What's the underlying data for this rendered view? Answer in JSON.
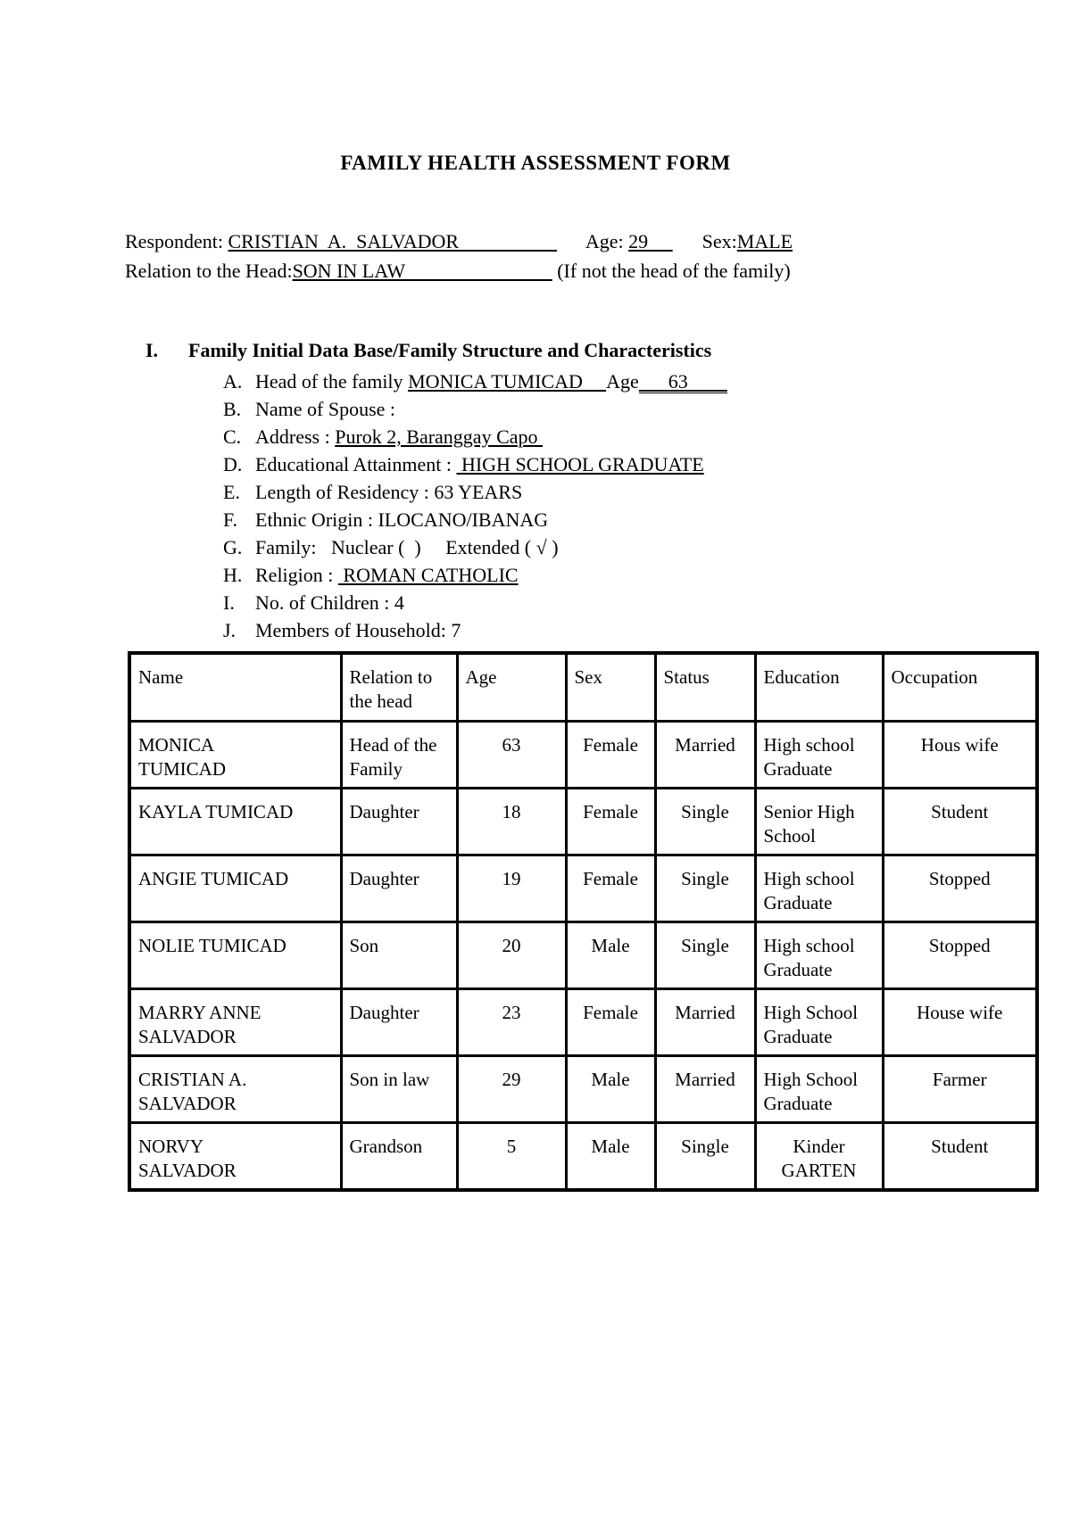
{
  "title": "FAMILY HEALTH ASSESSMENT FORM",
  "respondent": {
    "label": "Respondent: ",
    "name": "CRISTIAN  A.  SALVADOR                    ",
    "gap1": "      ",
    "age_label": "Age: ",
    "age": "29     ",
    "gap2": "      ",
    "sex_label": "Sex:",
    "sex": "MALE"
  },
  "relation": {
    "label": "Relation to the Head:",
    "value": "SON IN LAW                              ",
    "note": " (If not the head of the family)"
  },
  "section1": {
    "number": "I.",
    "heading": "Family Initial Data Base/Family Structure and Characteristics",
    "items": [
      {
        "letter": "A.",
        "pre": "Head of the family ",
        "u1": "MONICA TUMICAD     ",
        "mid": "Age",
        "u2": "      63        "
      },
      {
        "letter": "B.",
        "pre": "Name of Spouse : "
      },
      {
        "letter": "C.",
        "pre": "Address : ",
        "u1": "Purok 2, Baranggay Capo "
      },
      {
        "letter": "D.",
        "pre": "Educational Attainment : ",
        "u1": " HIGH SCHOOL GRADUATE"
      },
      {
        "letter": "E.",
        "pre": "Length of Residency : 63 YEARS"
      },
      {
        "letter": "F.",
        "pre": "Ethnic Origin : ILOCANO/IBANAG"
      },
      {
        "letter": "G.",
        "pre": "Family:   Nuclear (  )     Extended ( √ )"
      },
      {
        "letter": "H.",
        "pre": "Religion : ",
        "u1": " ROMAN CATHOLIC"
      },
      {
        "letter": "I.",
        "pre": "No. of Children : 4"
      },
      {
        "letter": "J.",
        "pre": "Members of Household: 7"
      }
    ]
  },
  "household_table": {
    "headers": [
      "Name",
      "Relation to\nthe head",
      "Age",
      "Sex",
      "Status",
      "Education",
      "Occupation"
    ],
    "rows": [
      [
        "MONICA\nTUMICAD",
        "Head of the\nFamily",
        "63",
        "Female",
        "Married",
        "High school\nGraduate",
        "Hous wife"
      ],
      [
        "KAYLA TUMICAD",
        "Daughter",
        "18",
        "Female",
        "Single",
        " Senior High\nSchool",
        "Student"
      ],
      [
        "ANGIE TUMICAD",
        "Daughter",
        "19",
        "Female",
        "Single",
        "High school\nGraduate",
        "Stopped"
      ],
      [
        "NOLIE TUMICAD",
        "Son",
        "20",
        "Male",
        "Single",
        "High school\nGraduate",
        "Stopped"
      ],
      [
        "MARRY ANNE\nSALVADOR",
        "Daughter",
        "23",
        "Female",
        "Married",
        "High School\nGraduate",
        "House wife"
      ],
      [
        "CRISTIAN A.\nSALVADOR",
        "Son in law",
        "29",
        "Male",
        "Married",
        "High School\nGraduate",
        "Farmer"
      ],
      [
        "NORVY\nSALVADOR",
        "Grandson",
        "5",
        "Male",
        "Single",
        "Kinder\nGARTEN",
        "Student"
      ]
    ]
  }
}
